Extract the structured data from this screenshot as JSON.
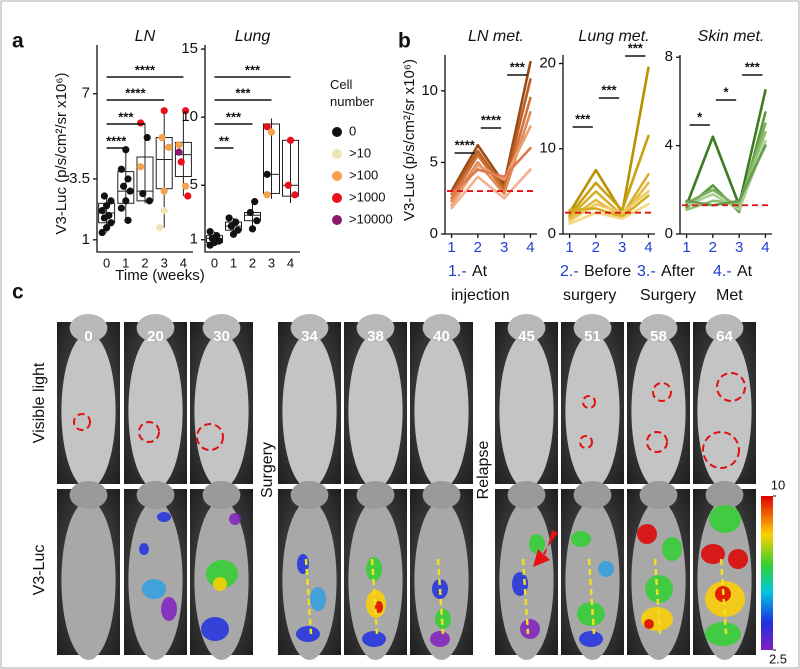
{
  "panel_labels": [
    "a",
    "b",
    "c"
  ],
  "chart_data": [
    {
      "type": "box",
      "title": "LN",
      "ylabel": "V3-Luc  (p/s/cm²/sr x10⁶)",
      "xlabel": "Time (weeks)",
      "categories": [
        "0",
        "1",
        "2",
        "3",
        "4"
      ],
      "ylim": [
        0.5,
        9
      ],
      "yticks": [
        1,
        3.5,
        7
      ],
      "boxes": [
        {
          "min": 1.3,
          "q1": 1.7,
          "median": 2.1,
          "q3": 2.5,
          "max": 2.8
        },
        {
          "min": 1.8,
          "q1": 2.5,
          "median": 3.0,
          "q3": 3.8,
          "max": 4.7
        },
        {
          "min": 2.5,
          "q1": 2.6,
          "median": 3.0,
          "q3": 4.4,
          "max": 5.8
        },
        {
          "min": 1.5,
          "q1": 3.1,
          "median": 4.3,
          "q3": 5.2,
          "max": 6.3
        },
        {
          "min": 2.8,
          "q1": 3.6,
          "median": 4.5,
          "q3": 5.0,
          "max": 6.3
        }
      ],
      "legend_title": "Cell number",
      "series": [
        {
          "name": "0",
          "color": "#111111",
          "x": [
            0,
            0,
            0,
            0,
            0,
            0,
            0,
            0,
            0,
            1,
            1,
            1,
            1,
            1,
            1,
            1,
            1,
            2,
            2,
            2
          ],
          "values": [
            1.3,
            1.5,
            1.7,
            1.9,
            2.0,
            2.2,
            2.4,
            2.6,
            2.8,
            1.8,
            2.3,
            2.6,
            3.0,
            3.2,
            3.5,
            3.9,
            4.7,
            2.6,
            2.9,
            5.2
          ]
        },
        {
          "name": ">10",
          "color": "#f1e3b8",
          "x": [
            3,
            3
          ],
          "values": [
            1.5,
            2.2
          ]
        },
        {
          "name": ">100",
          "color": "#f5a04a",
          "x": [
            2,
            3,
            3,
            3,
            4,
            4
          ],
          "values": [
            4.0,
            3.0,
            4.8,
            5.2,
            3.2,
            4.9
          ]
        },
        {
          "name": ">1000",
          "color": "#e8101a",
          "x": [
            2,
            3,
            4,
            4,
            4
          ],
          "values": [
            5.8,
            6.3,
            2.8,
            4.2,
            6.3
          ]
        },
        {
          "name": ">10000",
          "color": "#8b1a6a",
          "x": [
            4
          ],
          "values": [
            4.6
          ]
        }
      ],
      "annotations": [
        {
          "text": "****",
          "x": [
            0,
            1
          ]
        },
        {
          "text": "***",
          "x": [
            0,
            2
          ]
        },
        {
          "text": "****",
          "x": [
            0,
            3
          ]
        },
        {
          "text": "****",
          "x": [
            0,
            4
          ]
        }
      ]
    },
    {
      "type": "box",
      "title": "Lung",
      "categories": [
        "0",
        "1",
        "2",
        "3",
        "4"
      ],
      "ylim": [
        0.1,
        15.3
      ],
      "yticks": [
        1,
        5,
        10,
        15
      ],
      "boxes": [
        {
          "min": 0.6,
          "q1": 0.8,
          "median": 1.1,
          "q3": 1.3,
          "max": 1.6
        },
        {
          "min": 1.4,
          "q1": 1.7,
          "median": 2.0,
          "q3": 2.3,
          "max": 2.6
        },
        {
          "min": 1.8,
          "q1": 2.4,
          "median": 2.8,
          "q3": 3.0,
          "max": 3.8
        },
        {
          "min": 4.0,
          "q1": 4.4,
          "median": 5.8,
          "q3": 9.5,
          "max": 9.9
        },
        {
          "min": 3.7,
          "q1": 4.2,
          "median": 5.0,
          "q3": 8.3,
          "max": 8.3
        }
      ],
      "series": [
        {
          "color": "#111111",
          "x": [
            0,
            0,
            0,
            0,
            0,
            0,
            1,
            1,
            1,
            1,
            1,
            2,
            2,
            2,
            2,
            3
          ],
          "values": [
            0.6,
            0.8,
            0.9,
            1.1,
            1.3,
            1.6,
            1.4,
            1.7,
            2.0,
            2.3,
            2.6,
            1.8,
            2.4,
            3.0,
            3.8,
            5.8
          ]
        },
        {
          "color": "#f5a04a",
          "x": [
            3,
            3
          ],
          "values": [
            4.3,
            8.9
          ]
        },
        {
          "color": "#e8101a",
          "x": [
            3,
            4,
            4,
            4
          ],
          "values": [
            9.3,
            8.3,
            4.3,
            5.0
          ]
        }
      ],
      "annotations": [
        {
          "text": "**",
          "x": [
            0,
            1
          ]
        },
        {
          "text": "***",
          "x": [
            0,
            2
          ]
        },
        {
          "text": "***",
          "x": [
            0,
            3
          ]
        },
        {
          "text": "***",
          "x": [
            0,
            4
          ]
        }
      ]
    },
    {
      "type": "line",
      "title": "LN met.",
      "ylabel": "V3-Luc (p/s/cm²/sr x10⁶)",
      "x": [
        1,
        2,
        3,
        4
      ],
      "xlim": [
        0.75,
        4.25
      ],
      "xticks": [
        1,
        2,
        3,
        4
      ],
      "ylim": [
        0,
        12.5
      ],
      "yticks": [
        0,
        5,
        10
      ],
      "threshold": 3,
      "series": [
        {
          "color": "#9c4a16",
          "values": [
            3.0,
            6.2,
            3.5,
            12.0
          ]
        },
        {
          "color": "#b95e26",
          "values": [
            2.8,
            5.8,
            3.2,
            10.8
          ]
        },
        {
          "color": "#d07436",
          "values": [
            2.5,
            5.5,
            3.0,
            9.5
          ]
        },
        {
          "color": "#e08a58",
          "values": [
            2.3,
            5.0,
            2.8,
            8.5
          ]
        },
        {
          "color": "#eca070",
          "values": [
            2.0,
            4.8,
            3.8,
            7.5
          ]
        },
        {
          "color": "#e07850",
          "values": [
            2.8,
            4.5,
            4.0,
            6.0
          ]
        },
        {
          "color": "#f4b090",
          "values": [
            1.8,
            4.0,
            2.5,
            4.5
          ]
        }
      ],
      "annotations": [
        {
          "text": "****",
          "x": [
            1,
            2
          ]
        },
        {
          "text": "****",
          "x": [
            2,
            3
          ]
        },
        {
          "text": "***",
          "x": [
            3,
            4
          ]
        }
      ]
    },
    {
      "type": "line",
      "title": "Lung met.",
      "x": [
        1,
        2,
        3,
        4
      ],
      "xlim": [
        0.75,
        4.25
      ],
      "xticks": [
        1,
        2,
        3,
        4
      ],
      "ylim": [
        0,
        21
      ],
      "yticks": [
        0,
        10,
        20
      ],
      "threshold": 2.5,
      "series": [
        {
          "color": "#b89000",
          "values": [
            2.5,
            7.5,
            2.5,
            19.5
          ]
        },
        {
          "color": "#c9a010",
          "values": [
            2.2,
            6.0,
            2.8,
            11.5
          ]
        },
        {
          "color": "#d8b030",
          "values": [
            2.0,
            5.0,
            2.2,
            7.0
          ]
        },
        {
          "color": "#e4bc40",
          "values": [
            1.8,
            4.0,
            2.0,
            6.0
          ]
        },
        {
          "color": "#eec860",
          "values": [
            1.5,
            3.5,
            2.5,
            5.0
          ]
        },
        {
          "color": "#d4ac20",
          "values": [
            2.8,
            3.0,
            2.0,
            4.5
          ]
        },
        {
          "color": "#f4d880",
          "values": [
            1.2,
            2.5,
            1.8,
            3.5
          ]
        }
      ],
      "annotations": [
        {
          "text": "***",
          "x": [
            1,
            2
          ]
        },
        {
          "text": "***",
          "x": [
            2,
            3
          ]
        },
        {
          "text": "***",
          "x": [
            3,
            4
          ]
        }
      ]
    },
    {
      "type": "line",
      "title": "Skin met.",
      "x": [
        1,
        2,
        3,
        4
      ],
      "xlim": [
        0.75,
        4.25
      ],
      "xticks": [
        1,
        2,
        3,
        4
      ],
      "ylim": [
        0,
        8.1
      ],
      "yticks": [
        0,
        4,
        8
      ],
      "threshold": 1.3,
      "series": [
        {
          "color": "#3d7a20",
          "values": [
            1.3,
            4.4,
            1.3,
            6.5
          ]
        },
        {
          "color": "#5a9a3a",
          "values": [
            1.2,
            2.2,
            1.0,
            5.5
          ]
        },
        {
          "color": "#7ab060",
          "values": [
            1.4,
            2.0,
            1.2,
            5.0
          ]
        },
        {
          "color": "#90c070",
          "values": [
            1.1,
            1.5,
            1.4,
            4.6
          ]
        },
        {
          "color": "#a8d090",
          "values": [
            1.3,
            1.8,
            1.1,
            4.2
          ]
        },
        {
          "color": "#6a9a50",
          "values": [
            1.5,
            1.3,
            1.5,
            4.0
          ]
        }
      ],
      "annotations": [
        {
          "text": "*",
          "x": [
            1,
            2
          ]
        },
        {
          "text": "*",
          "x": [
            2,
            3
          ]
        },
        {
          "text": "***",
          "x": [
            3,
            4
          ]
        }
      ]
    }
  ],
  "panel_b": {
    "stages": [
      {
        "number": "1.-",
        "text": "At injection"
      },
      {
        "number": "2.-",
        "text": "Before surgery"
      },
      {
        "number": "3.-",
        "text": "After Surgery"
      },
      {
        "number": "4.-",
        "text": "At Met"
      }
    ]
  },
  "panel_c": {
    "weeks": [
      "0",
      "20",
      "30",
      "34",
      "38",
      "40",
      "45",
      "51",
      "58",
      "64"
    ],
    "row_labels": [
      "Visible light",
      "V3-Luc"
    ],
    "group_labels": [
      "Surgery",
      "Relapse"
    ],
    "colorbar": {
      "ylim": [
        2.5,
        10
      ],
      "yticks": [
        10,
        2.5
      ]
    }
  }
}
